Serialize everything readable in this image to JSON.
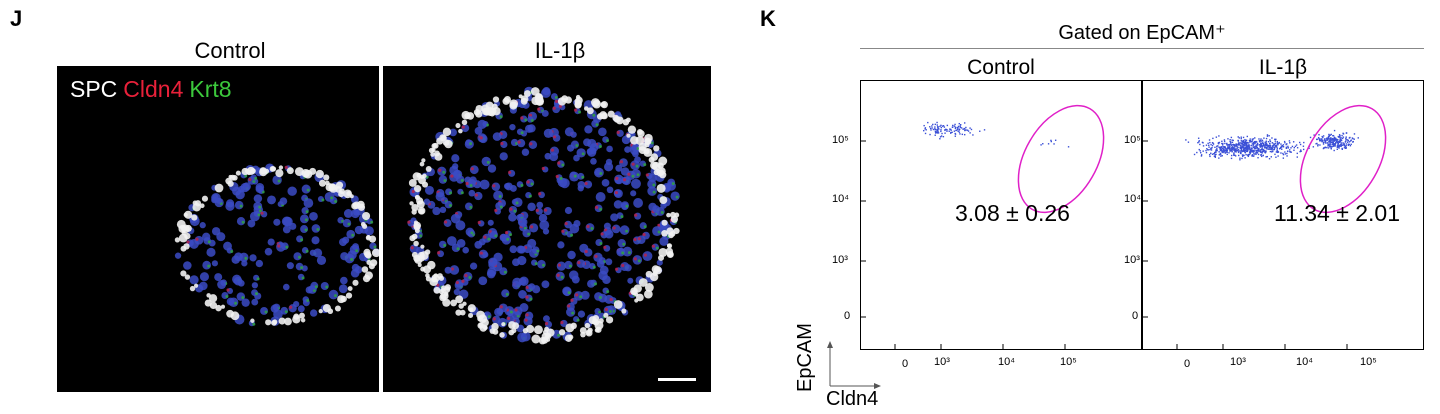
{
  "panel_j": {
    "letter": "J",
    "titles": [
      "Control",
      "IL-1β"
    ],
    "stain_legend": [
      {
        "text": "SPC",
        "color": "#ffffff"
      },
      {
        "text": "Cldn4",
        "color": "#e8213a"
      },
      {
        "text": "Krt8",
        "color": "#3cc83c"
      }
    ]
  },
  "panel_k": {
    "letter": "K",
    "gated_label": "Gated on EpCAM⁺",
    "plots": [
      {
        "title": "Control",
        "percentage": "3.08 ± 0.26"
      },
      {
        "title": "IL-1β",
        "percentage": "11.34 ± 2.01"
      }
    ],
    "y_ticks": [
      "10⁵",
      "10⁴",
      "10³",
      "0"
    ],
    "x_ticks": [
      "0",
      "10³",
      "10⁴",
      "10⁵"
    ],
    "y_axis_label": "EpCAM",
    "x_axis_label": "Cldn4",
    "dot_color": "#3a4fd6",
    "gate_color": "#e020c8"
  }
}
